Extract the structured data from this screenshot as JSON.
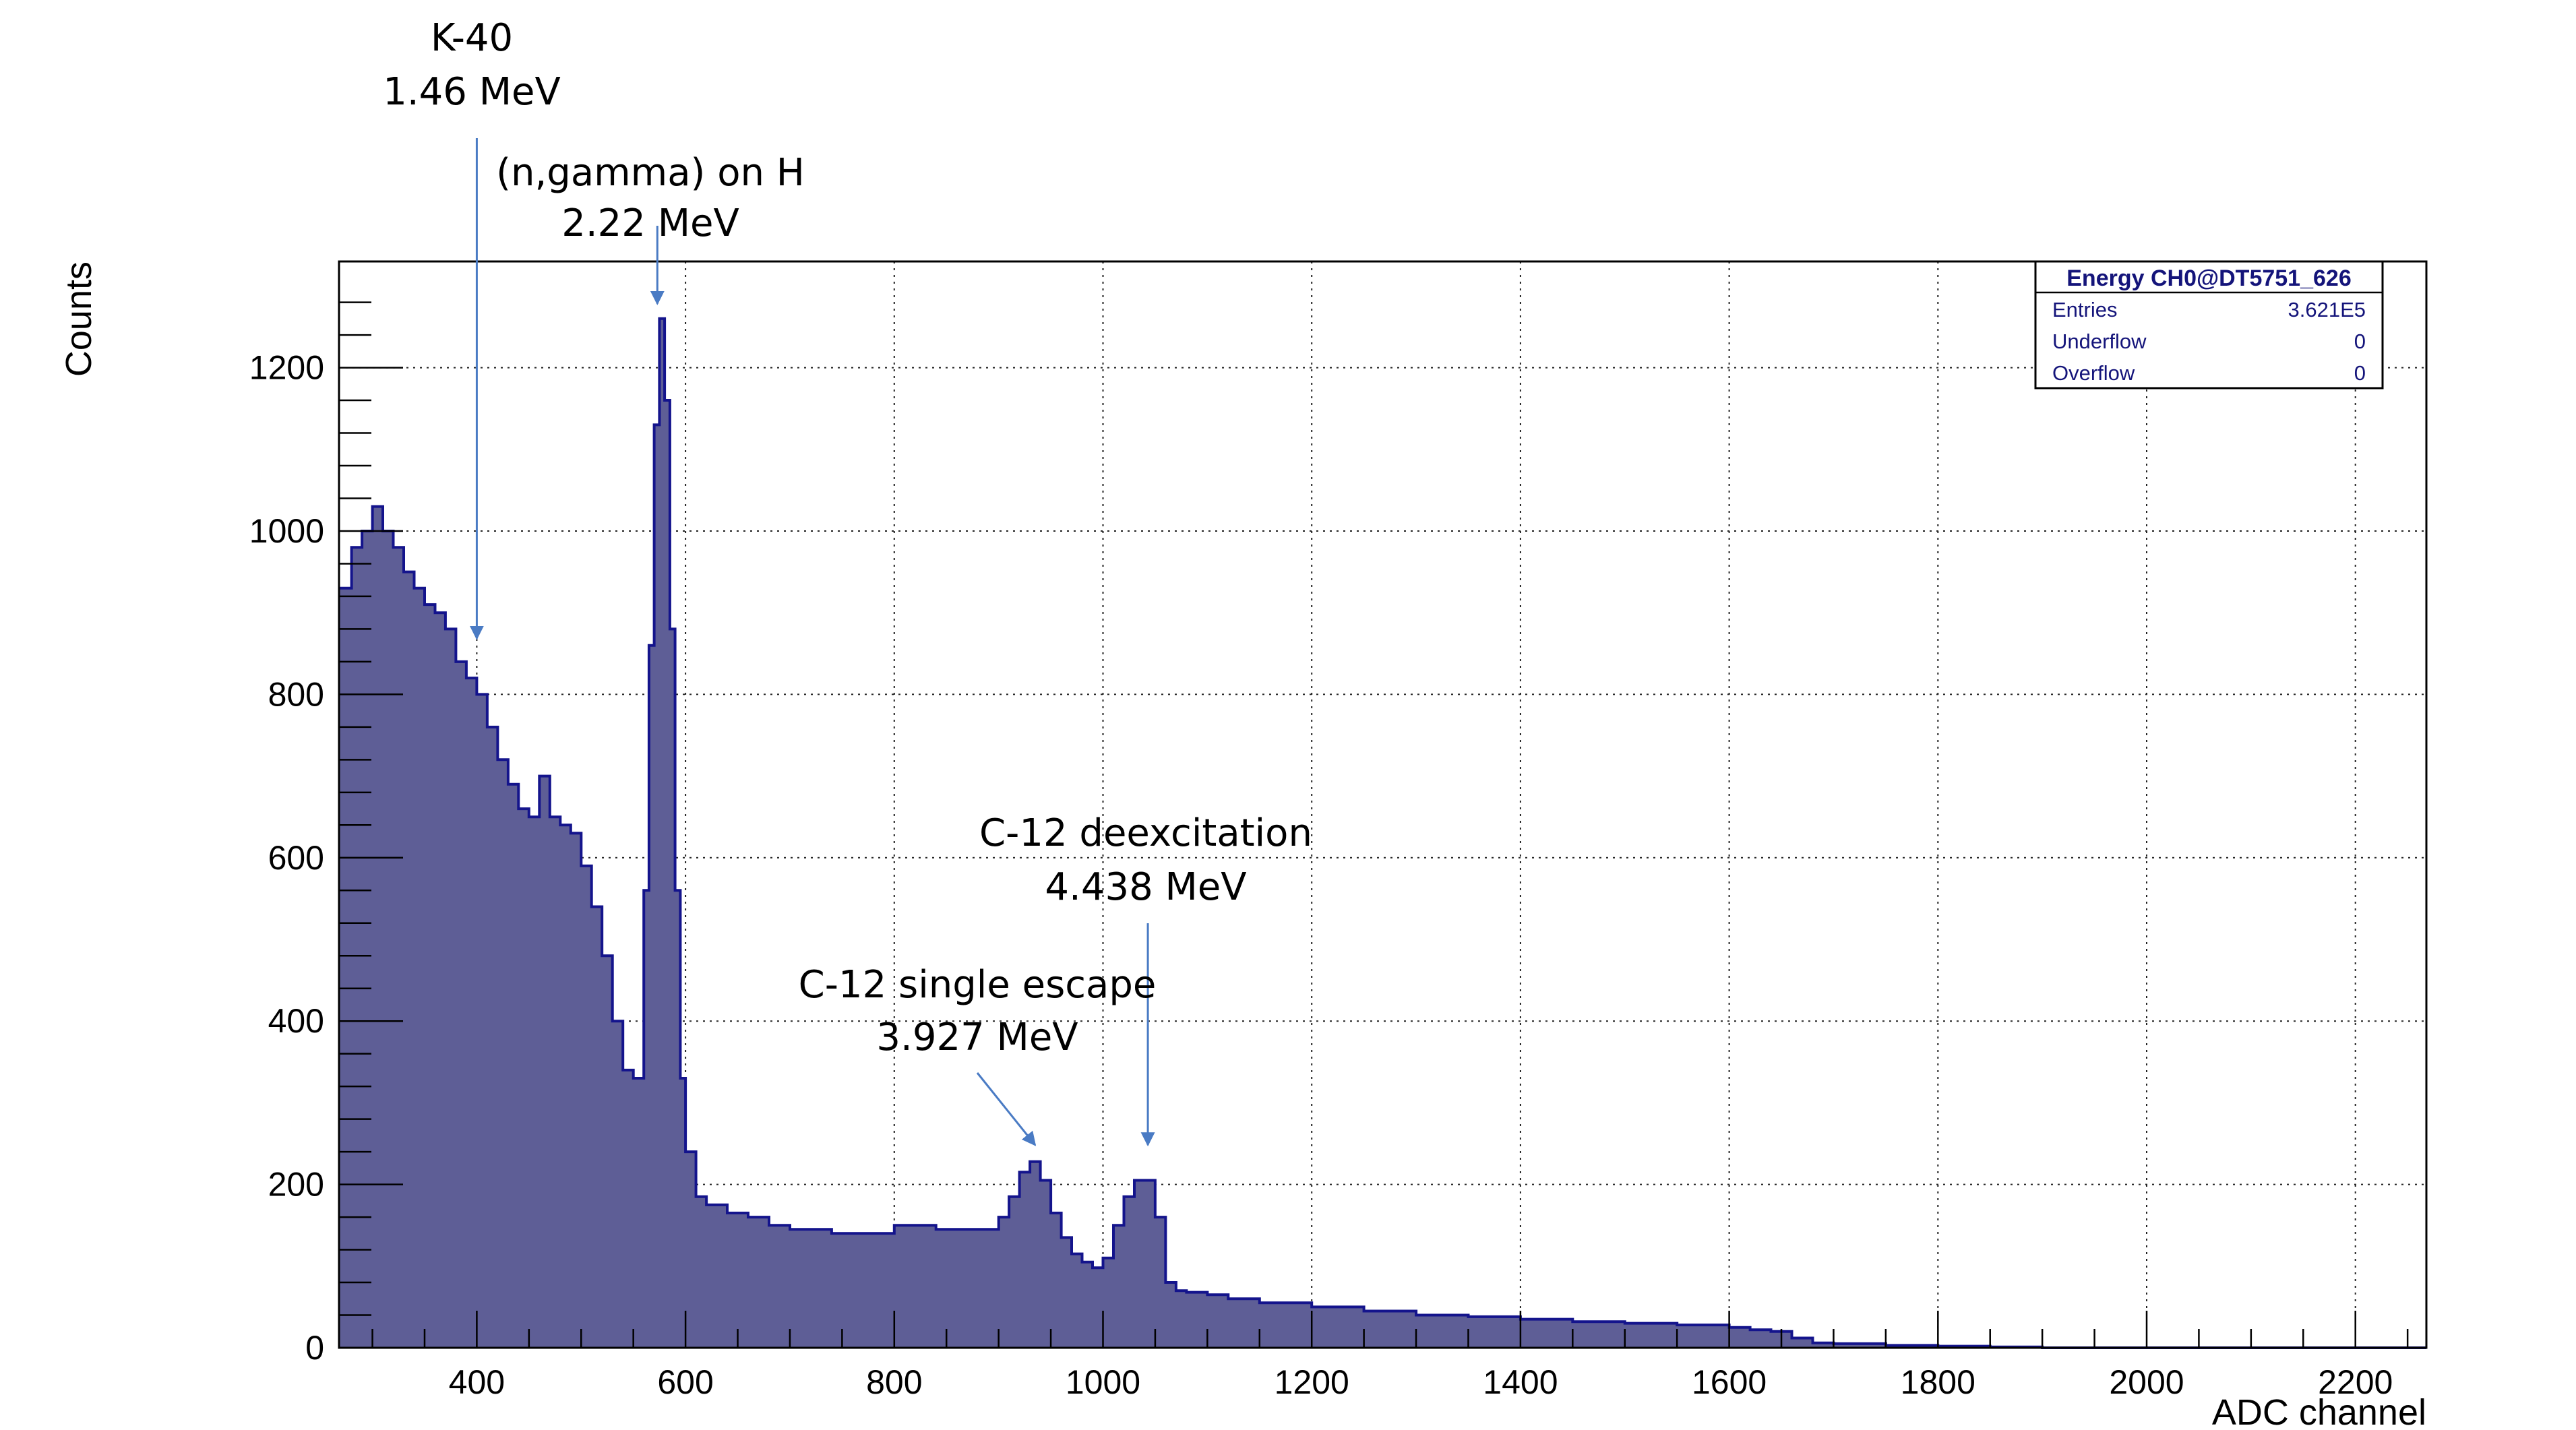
{
  "chart_data": {
    "type": "area",
    "title": "",
    "xlabel": "ADC channel",
    "ylabel": "Counts",
    "xlim": [
      268,
      2268
    ],
    "ylim": [
      0,
      1330
    ],
    "x_ticks": [
      400,
      600,
      800,
      1000,
      1200,
      1400,
      1600,
      1800,
      2000,
      2200
    ],
    "x_tick_labels": [
      "400",
      "600",
      "800",
      "1000",
      "1200",
      "1400",
      "1600",
      "1800",
      "2000",
      "2200"
    ],
    "y_ticks": [
      0,
      200,
      400,
      600,
      800,
      1000,
      1200
    ],
    "y_tick_labels": [
      "0",
      "200",
      "400",
      "600",
      "800",
      "1000",
      "1200"
    ],
    "grid": true,
    "colors": {
      "fill": "#5e5e96",
      "line": "#14148c",
      "annotation": "#4a7bc4"
    },
    "series": [
      {
        "x": [
          268,
          280,
          290,
          300,
          310,
          320,
          330,
          340,
          350,
          360,
          370,
          380,
          390,
          400,
          410,
          420,
          430,
          440,
          450,
          460,
          470,
          480,
          490,
          500,
          510,
          520,
          530,
          540,
          550,
          560,
          565,
          570,
          575,
          580,
          585,
          590,
          595,
          600,
          610,
          620,
          640,
          660,
          680,
          700,
          720,
          740,
          760,
          780,
          800,
          820,
          840,
          860,
          880,
          900,
          910,
          920,
          930,
          940,
          950,
          960,
          970,
          980,
          990,
          1000,
          1010,
          1020,
          1030,
          1040,
          1050,
          1060,
          1070,
          1080,
          1100,
          1120,
          1150,
          1200,
          1250,
          1300,
          1350,
          1400,
          1450,
          1500,
          1550,
          1600,
          1620,
          1640,
          1660,
          1680,
          1700,
          1750,
          1800,
          1850,
          1900,
          2000,
          2268
        ],
        "y": [
          930,
          980,
          1000,
          1030,
          1000,
          980,
          950,
          930,
          910,
          900,
          880,
          840,
          820,
          800,
          760,
          720,
          690,
          660,
          650,
          700,
          650,
          640,
          630,
          590,
          540,
          480,
          400,
          340,
          330,
          560,
          860,
          1130,
          1260,
          1160,
          880,
          560,
          330,
          240,
          185,
          175,
          165,
          160,
          150,
          145,
          145,
          140,
          140,
          140,
          150,
          150,
          145,
          145,
          145,
          160,
          185,
          215,
          228,
          205,
          165,
          135,
          115,
          105,
          98,
          110,
          150,
          185,
          205,
          205,
          160,
          80,
          70,
          68,
          65,
          60,
          55,
          50,
          45,
          40,
          38,
          35,
          32,
          30,
          28,
          25,
          22,
          20,
          12,
          6,
          5,
          3,
          2,
          1,
          0,
          0,
          0
        ]
      }
    ],
    "annotations": [
      {
        "line1": "K-40",
        "line2": "1.46 MeV",
        "x": 400,
        "y": 860
      },
      {
        "line1": "(n,gamma) on H",
        "line2": "2.22 MeV",
        "x": 573,
        "y": 1270
      },
      {
        "line1": "C-12 deexcitation",
        "line2": "4.438 MeV",
        "x": 1043,
        "y": 240
      },
      {
        "line1": "C-12 single escape",
        "line2": "3.927 MeV",
        "x": 935,
        "y": 240
      }
    ]
  },
  "stats_box": {
    "title": "Energy CH0@DT5751_626",
    "rows": [
      {
        "label": "Entries",
        "value": "3.621E5"
      },
      {
        "label": "Underflow",
        "value": "0"
      },
      {
        "label": "Overflow",
        "value": "0"
      }
    ]
  }
}
